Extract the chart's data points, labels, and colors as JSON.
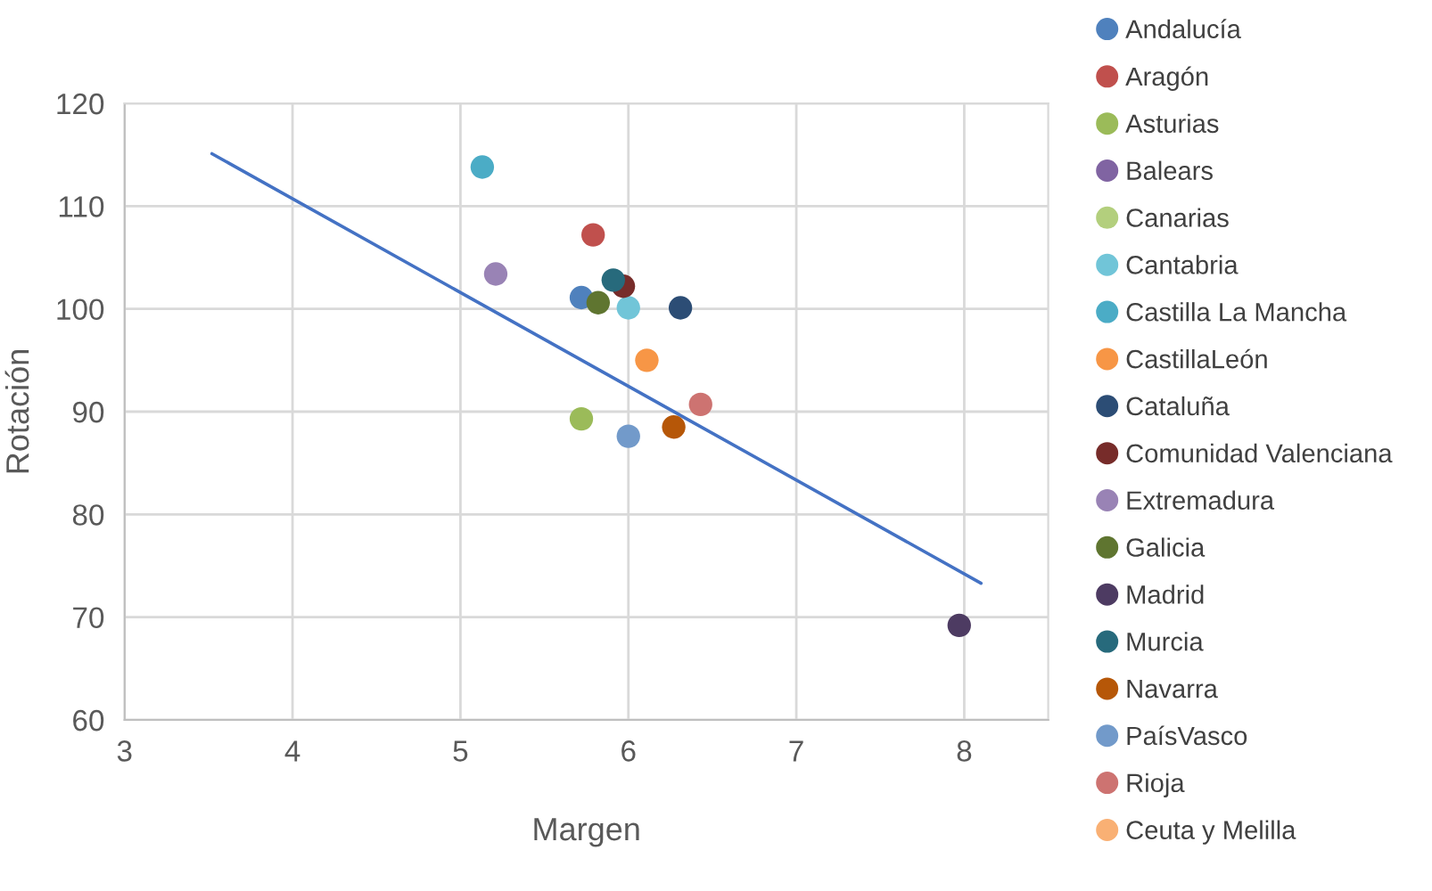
{
  "chart_data": {
    "type": "scatter",
    "xlabel": "Margen",
    "ylabel": "Rotación",
    "xlim": [
      3,
      8.5
    ],
    "xticks": [
      3,
      4,
      5,
      6,
      7,
      8
    ],
    "ylim": [
      60,
      120
    ],
    "yticks": [
      60,
      70,
      80,
      90,
      100,
      110,
      120
    ],
    "grid": true,
    "legend": "right",
    "marker": "circle",
    "series": [
      {
        "name": "Andalucía",
        "color": "#4f81bd",
        "x": [
          5.72
        ],
        "values": [
          101.1
        ]
      },
      {
        "name": "Aragón",
        "color": "#c0504d",
        "x": [
          5.79
        ],
        "values": [
          107.2
        ]
      },
      {
        "name": "Asturias",
        "color": "#9bbb59",
        "x": [
          5.72
        ],
        "values": [
          89.3
        ]
      },
      {
        "name": "Balears",
        "color": "#8064a2",
        "x": [
          null
        ],
        "values": [
          null
        ]
      },
      {
        "name": "Canarias",
        "color": "#b3cf7d",
        "x": [
          null
        ],
        "values": [
          null
        ]
      },
      {
        "name": "Cantabria",
        "color": "#71c5d8",
        "x": [
          6.0
        ],
        "values": [
          100.1
        ]
      },
      {
        "name": "Castilla La Mancha",
        "color": "#4bacc6",
        "x": [
          5.13
        ],
        "values": [
          113.8
        ]
      },
      {
        "name": "CastillaLeón",
        "color": "#f79646",
        "x": [
          6.11
        ],
        "values": [
          95.0
        ]
      },
      {
        "name": "Cataluña",
        "color": "#2c4d75",
        "x": [
          6.31
        ],
        "values": [
          100.1
        ]
      },
      {
        "name": "Comunidad Valenciana",
        "color": "#772c2a",
        "x": [
          5.97
        ],
        "values": [
          102.2
        ]
      },
      {
        "name": "Extremadura",
        "color": "#9983b5",
        "x": [
          5.21
        ],
        "values": [
          103.4
        ]
      },
      {
        "name": "Galicia",
        "color": "#5f7530",
        "x": [
          5.82
        ],
        "values": [
          100.6
        ]
      },
      {
        "name": "Madrid",
        "color": "#4d3b62",
        "x": [
          7.97
        ],
        "values": [
          69.2
        ]
      },
      {
        "name": "Murcia",
        "color": "#276a7c",
        "x": [
          5.91
        ],
        "values": [
          102.8
        ]
      },
      {
        "name": "Navarra",
        "color": "#b65708",
        "x": [
          6.27
        ],
        "values": [
          88.5
        ]
      },
      {
        "name": "PaísVasco",
        "color": "#729aca",
        "x": [
          6.0
        ],
        "values": [
          87.6
        ]
      },
      {
        "name": "Rioja",
        "color": "#cd7371",
        "x": [
          6.43
        ],
        "values": [
          90.7
        ]
      },
      {
        "name": "Ceuta y Melilla",
        "color": "#f9b074",
        "x": [
          null
        ],
        "values": [
          null
        ]
      },
      {
        "type": "line",
        "marker": "none",
        "color": "#4472c4",
        "x": [
          3.52,
          8.1
        ],
        "values": [
          115.1,
          73.3
        ]
      }
    ]
  }
}
